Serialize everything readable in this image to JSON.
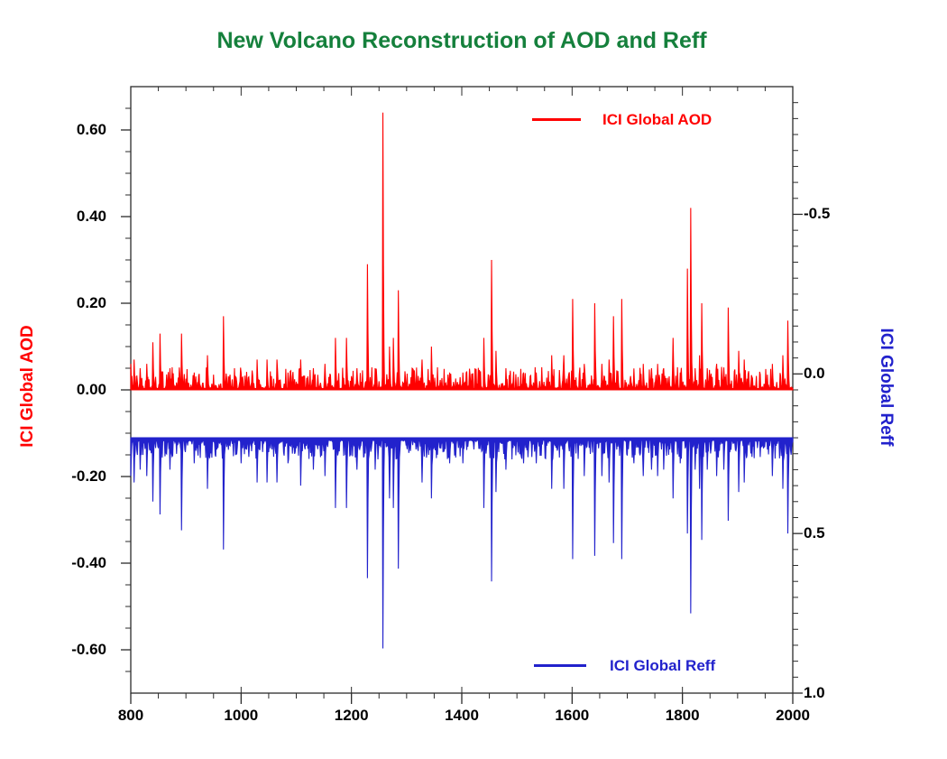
{
  "title": {
    "text": "New Volcano Reconstruction of AOD and Reff",
    "color": "#15803c"
  },
  "colors": {
    "aod": "#ff0000",
    "reff": "#2222cc",
    "axis": "#2b2b2b",
    "tick_label": "#000000"
  },
  "legend": {
    "aod_label": "ICI Global AOD",
    "reff_label": "ICI Global Reff"
  },
  "chart_data": {
    "type": "line",
    "title": "New Volcano Reconstruction of AOD and Reff",
    "xlabel": "",
    "axes": {
      "x": {
        "min": 800,
        "max": 2000,
        "major_step": 200,
        "minor_step": 50,
        "major_ticks": [
          800,
          1000,
          1200,
          1400,
          1600,
          1800,
          2000
        ],
        "tick_labels": [
          "800",
          "1000",
          "1200",
          "1400",
          "1600",
          "1800",
          "2000"
        ]
      },
      "y_left": {
        "label": "ICI Global AOD",
        "min": -0.7,
        "max": 0.7,
        "minor_step": 0.05,
        "major_ticks": [
          0.6,
          0.4,
          0.2,
          0.0,
          -0.2,
          -0.4,
          -0.6
        ],
        "tick_labels": [
          "0.60",
          "0.40",
          "0.20",
          "0.00",
          "-0.20",
          "-0.40",
          "-0.60"
        ]
      },
      "y_right": {
        "label": "ICI Global Reff",
        "inverted": true,
        "top_value": -0.9,
        "bottom_value": 1.0,
        "minor_step": 0.05,
        "major_ticks": [
          -0.5,
          0.0,
          0.5,
          1.0
        ],
        "tick_labels": [
          "-0.5",
          "0.0",
          "0.5",
          "1.0"
        ]
      }
    },
    "series": [
      {
        "name": "ICI Global AOD",
        "axis": "left",
        "color": "#ff0000",
        "baseline": 0.0,
        "direction": "up"
      },
      {
        "name": "ICI Global Reff",
        "axis": "right",
        "color": "#2222cc",
        "baseline": 0.2,
        "direction": "down-on-inverted-axis"
      }
    ],
    "eruptions_columns": [
      "year",
      "aod_peak",
      "reff_peak"
    ],
    "eruptions": [
      [
        800,
        0.06,
        0.32
      ],
      [
        806,
        0.07,
        0.34
      ],
      [
        817,
        0.05,
        0.3
      ],
      [
        829,
        0.06,
        0.32
      ],
      [
        840,
        0.11,
        0.4
      ],
      [
        853,
        0.13,
        0.44
      ],
      [
        871,
        0.05,
        0.3
      ],
      [
        892,
        0.13,
        0.49
      ],
      [
        915,
        0.04,
        0.28
      ],
      [
        939,
        0.08,
        0.36
      ],
      [
        968,
        0.17,
        0.55
      ],
      [
        1000,
        0.04,
        0.28
      ],
      [
        1014,
        0.03,
        0.26
      ],
      [
        1029,
        0.07,
        0.34
      ],
      [
        1047,
        0.07,
        0.34
      ],
      [
        1065,
        0.07,
        0.34
      ],
      [
        1085,
        0.04,
        0.28
      ],
      [
        1108,
        0.07,
        0.35
      ],
      [
        1131,
        0.05,
        0.3
      ],
      [
        1152,
        0.06,
        0.32
      ],
      [
        1171,
        0.12,
        0.42
      ],
      [
        1191,
        0.12,
        0.42
      ],
      [
        1210,
        0.05,
        0.3
      ],
      [
        1229,
        0.29,
        0.64
      ],
      [
        1243,
        0.05,
        0.3
      ],
      [
        1257,
        0.64,
        0.86
      ],
      [
        1269,
        0.1,
        0.39
      ],
      [
        1276,
        0.12,
        0.42
      ],
      [
        1285,
        0.23,
        0.61
      ],
      [
        1328,
        0.07,
        0.34
      ],
      [
        1345,
        0.1,
        0.39
      ],
      [
        1378,
        0.04,
        0.28
      ],
      [
        1402,
        0.04,
        0.28
      ],
      [
        1440,
        0.12,
        0.42
      ],
      [
        1454,
        0.3,
        0.65
      ],
      [
        1462,
        0.09,
        0.37
      ],
      [
        1480,
        0.05,
        0.3
      ],
      [
        1512,
        0.04,
        0.28
      ],
      [
        1535,
        0.04,
        0.28
      ],
      [
        1563,
        0.08,
        0.36
      ],
      [
        1585,
        0.08,
        0.36
      ],
      [
        1601,
        0.21,
        0.58
      ],
      [
        1622,
        0.06,
        0.32
      ],
      [
        1641,
        0.2,
        0.57
      ],
      [
        1654,
        0.06,
        0.32
      ],
      [
        1667,
        0.07,
        0.34
      ],
      [
        1675,
        0.17,
        0.53
      ],
      [
        1690,
        0.21,
        0.58
      ],
      [
        1712,
        0.04,
        0.28
      ],
      [
        1729,
        0.06,
        0.32
      ],
      [
        1744,
        0.05,
        0.3
      ],
      [
        1755,
        0.06,
        0.32
      ],
      [
        1766,
        0.05,
        0.3
      ],
      [
        1783,
        0.12,
        0.39
      ],
      [
        1796,
        0.04,
        0.28
      ],
      [
        1809,
        0.28,
        0.5
      ],
      [
        1815,
        0.42,
        0.75
      ],
      [
        1823,
        0.05,
        0.3
      ],
      [
        1831,
        0.08,
        0.36
      ],
      [
        1835,
        0.2,
        0.52
      ],
      [
        1845,
        0.05,
        0.3
      ],
      [
        1862,
        0.06,
        0.32
      ],
      [
        1875,
        0.05,
        0.3
      ],
      [
        1883,
        0.19,
        0.46
      ],
      [
        1902,
        0.09,
        0.37
      ],
      [
        1912,
        0.07,
        0.34
      ],
      [
        1926,
        0.03,
        0.26
      ],
      [
        1963,
        0.06,
        0.32
      ],
      [
        1982,
        0.08,
        0.36
      ],
      [
        1991,
        0.16,
        0.5
      ]
    ],
    "background": {
      "aod_noise_max": 0.05,
      "reff_noise_max": 0.06,
      "seed": 42,
      "spike_decay": [
        1.0,
        0.45,
        0.15
      ]
    },
    "legend_entries": [
      "ICI Global AOD",
      "ICI Global Reff"
    ],
    "legend_positions": [
      "top-center-right",
      "bottom-center-right"
    ]
  }
}
